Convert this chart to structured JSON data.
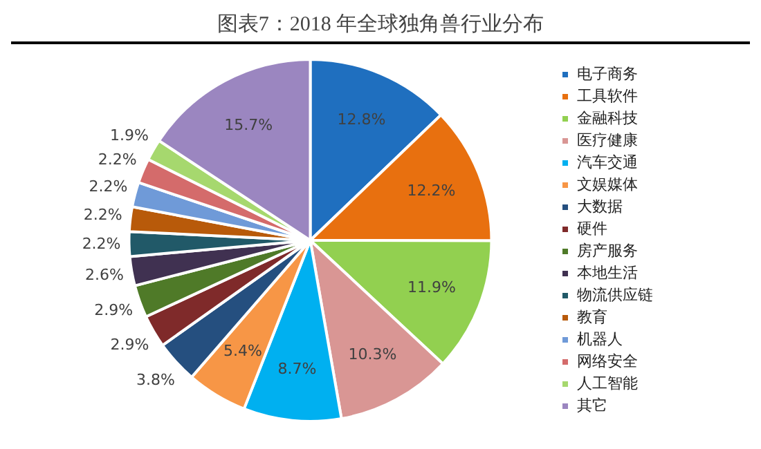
{
  "chart_data": {
    "type": "pie",
    "title": "图表7：2018 年全球独角兽行业分布",
    "categories": [
      "电子商务",
      "工具软件",
      "金融科技",
      "医疗健康",
      "汽车交通",
      "文娱媒体",
      "大数据",
      "硬件",
      "房产服务",
      "本地生活",
      "物流供应链",
      "教育",
      "机器人",
      "网络安全",
      "人工智能",
      "其它"
    ],
    "values": [
      12.8,
      12.2,
      11.9,
      10.3,
      8.7,
      5.4,
      3.8,
      2.9,
      2.9,
      2.6,
      2.2,
      2.2,
      2.2,
      2.2,
      1.9,
      15.7
    ],
    "value_labels": [
      "12.8%",
      "12.2%",
      "11.9%",
      "10.3%",
      "8.7%",
      "5.4%",
      "3.8%",
      "2.9%",
      "2.9%",
      "2.6%",
      "2.2%",
      "2.2%",
      "2.2%",
      "2.2%",
      "1.9%",
      "15.7%"
    ],
    "colors": [
      "#1f6fbf",
      "#e8700f",
      "#92d050",
      "#d99694",
      "#00b0f0",
      "#f79646",
      "#254f7f",
      "#7f2a2a",
      "#4f7a28",
      "#403151",
      "#215968",
      "#b85a0a",
      "#6f9ad8",
      "#d46b6b",
      "#a6d86e",
      "#9b86c0"
    ],
    "legend": "right"
  }
}
